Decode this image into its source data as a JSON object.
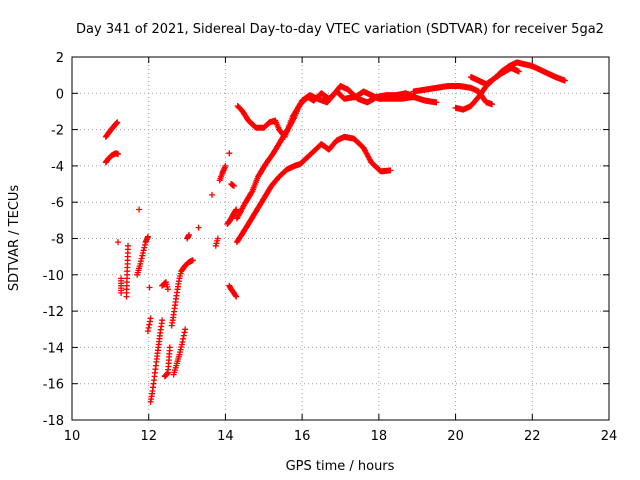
{
  "chart_data": {
    "type": "scatter",
    "title": "Day 341 of 2021, Sidereal Day-to-day VTEC variation (SDTVAR) for receiver 5ga2",
    "xlabel": "GPS time / hours",
    "ylabel": "SDTVAR / TECUs",
    "xlim": [
      10,
      24
    ],
    "ylim": [
      -18,
      2
    ],
    "xticks": [
      10,
      12,
      14,
      16,
      18,
      20,
      22,
      24
    ],
    "yticks": [
      2,
      0,
      -2,
      -4,
      -6,
      -8,
      -10,
      -12,
      -14,
      -16,
      -18
    ],
    "grid": true,
    "marker": "plus",
    "color": "#ff0000",
    "series": [
      {
        "segments": [
          [
            [
              10.88,
              -2.4
            ],
            [
              10.95,
              -2.2
            ],
            [
              11.02,
              -2.0
            ],
            [
              11.1,
              -1.8
            ],
            [
              11.18,
              -1.6
            ]
          ],
          [
            [
              10.88,
              -3.8
            ],
            [
              10.95,
              -3.6
            ],
            [
              11.05,
              -3.4
            ],
            [
              11.15,
              -3.3
            ],
            [
              11.2,
              -3.35
            ]
          ],
          [
            [
              11.2,
              -8.2
            ]
          ],
          [
            [
              11.28,
              -10.2
            ],
            [
              11.28,
              -10.6
            ],
            [
              11.28,
              -11.0
            ]
          ],
          [
            [
              11.42,
              -10.8
            ],
            [
              11.42,
              -11.2
            ],
            [
              11.46,
              -8.4
            ]
          ],
          [
            [
              11.75,
              -6.4
            ]
          ],
          [
            [
              11.7,
              -10.0
            ],
            [
              11.78,
              -9.4
            ],
            [
              11.85,
              -8.8
            ],
            [
              11.92,
              -8.2
            ],
            [
              11.98,
              -7.9
            ]
          ],
          [
            [
              12.02,
              -10.7
            ]
          ],
          [
            [
              11.98,
              -13.1
            ],
            [
              12.05,
              -12.4
            ]
          ],
          [
            [
              12.05,
              -17.0
            ],
            [
              12.1,
              -16.4
            ],
            [
              12.15,
              -15.6
            ],
            [
              12.2,
              -14.8
            ],
            [
              12.25,
              -14.0
            ],
            [
              12.3,
              -13.2
            ],
            [
              12.35,
              -12.5
            ]
          ],
          [
            [
              12.35,
              -10.6
            ],
            [
              12.45,
              -10.4
            ],
            [
              12.5,
              -10.8
            ]
          ],
          [
            [
              12.42,
              -15.6
            ],
            [
              12.5,
              -15.4
            ],
            [
              12.55,
              -14.0
            ]
          ],
          [
            [
              12.6,
              -12.8
            ],
            [
              12.65,
              -12.2
            ],
            [
              12.7,
              -11.5
            ],
            [
              12.75,
              -10.8
            ],
            [
              12.8,
              -10.2
            ],
            [
              12.85,
              -9.8
            ],
            [
              12.95,
              -9.5
            ],
            [
              13.05,
              -9.3
            ],
            [
              13.15,
              -9.2
            ]
          ],
          [
            [
              12.65,
              -15.5
            ],
            [
              12.72,
              -15.0
            ],
            [
              12.8,
              -14.4
            ],
            [
              12.88,
              -13.7
            ],
            [
              12.95,
              -13.0
            ]
          ],
          [
            [
              13.0,
              -8.0
            ],
            [
              13.05,
              -7.8
            ]
          ],
          [
            [
              13.3,
              -7.4
            ]
          ],
          [
            [
              13.65,
              -5.6
            ]
          ],
          [
            [
              13.75,
              -8.4
            ],
            [
              13.8,
              -8.0
            ]
          ],
          [
            [
              13.85,
              -4.8
            ],
            [
              13.92,
              -4.4
            ],
            [
              14.0,
              -4.0
            ]
          ],
          [
            [
              14.1,
              -3.3
            ]
          ],
          [
            [
              14.05,
              -7.2
            ],
            [
              14.12,
              -7.0
            ],
            [
              14.2,
              -6.7
            ],
            [
              14.28,
              -6.4
            ]
          ],
          [
            [
              14.1,
              -10.6
            ],
            [
              14.15,
              -10.8
            ],
            [
              14.22,
              -11.0
            ],
            [
              14.28,
              -11.2
            ]
          ],
          [
            [
              14.15,
              -5.0
            ],
            [
              14.22,
              -5.1
            ]
          ],
          [
            [
              14.32,
              -0.7
            ],
            [
              14.45,
              -1.0
            ],
            [
              14.6,
              -1.5
            ],
            [
              14.8,
              -1.9
            ],
            [
              15.0,
              -1.9
            ],
            [
              15.15,
              -1.6
            ],
            [
              15.3,
              -1.5
            ],
            [
              15.4,
              -2.0
            ],
            [
              15.55,
              -2.4
            ],
            [
              15.75,
              -1.3
            ],
            [
              15.95,
              -0.6
            ],
            [
              16.15,
              -0.2
            ],
            [
              16.3,
              -0.4
            ],
            [
              16.5,
              0.0
            ],
            [
              16.7,
              -0.3
            ],
            [
              16.9,
              0.1
            ],
            [
              17.1,
              -0.3
            ],
            [
              17.4,
              -0.2
            ],
            [
              17.6,
              0.1
            ],
            [
              17.8,
              -0.1
            ],
            [
              18.0,
              -0.3
            ],
            [
              18.3,
              -0.3
            ],
            [
              18.6,
              -0.3
            ],
            [
              18.9,
              -0.2
            ],
            [
              19.2,
              -0.4
            ],
            [
              19.5,
              -0.5
            ]
          ],
          [
            [
              14.3,
              -8.2
            ],
            [
              14.45,
              -7.7
            ],
            [
              14.6,
              -7.2
            ],
            [
              14.8,
              -6.5
            ],
            [
              15.0,
              -5.8
            ],
            [
              15.2,
              -5.1
            ],
            [
              15.4,
              -4.6
            ],
            [
              15.6,
              -4.2
            ],
            [
              15.8,
              -4.0
            ],
            [
              15.95,
              -3.9
            ],
            [
              16.1,
              -3.6
            ],
            [
              16.3,
              -3.2
            ],
            [
              16.5,
              -2.8
            ],
            [
              16.7,
              -3.1
            ],
            [
              16.9,
              -2.6
            ],
            [
              17.1,
              -2.4
            ],
            [
              17.35,
              -2.5
            ],
            [
              17.6,
              -3.0
            ],
            [
              17.8,
              -3.8
            ],
            [
              18.05,
              -4.3
            ],
            [
              18.3,
              -4.25
            ]
          ],
          [
            [
              14.3,
              -6.9
            ],
            [
              14.5,
              -6.1
            ],
            [
              14.7,
              -5.4
            ],
            [
              14.85,
              -4.6
            ],
            [
              15.05,
              -3.9
            ],
            [
              15.25,
              -3.3
            ],
            [
              15.45,
              -2.6
            ],
            [
              15.65,
              -1.9
            ],
            [
              15.8,
              -1.3
            ],
            [
              15.9,
              -0.8
            ],
            [
              16.0,
              -0.4
            ],
            [
              16.2,
              -0.1
            ],
            [
              16.4,
              -0.3
            ],
            [
              16.65,
              -0.5
            ],
            [
              16.85,
              0.0
            ],
            [
              17.0,
              0.4
            ],
            [
              17.2,
              0.2
            ],
            [
              17.45,
              -0.3
            ],
            [
              17.7,
              -0.5
            ],
            [
              17.95,
              -0.2
            ],
            [
              18.2,
              -0.1
            ],
            [
              18.45,
              -0.1
            ],
            [
              18.7,
              0.0
            ],
            [
              18.95,
              -0.2
            ]
          ],
          [
            [
              18.9,
              0.1
            ],
            [
              19.2,
              0.2
            ],
            [
              19.5,
              0.3
            ],
            [
              19.8,
              0.4
            ],
            [
              20.1,
              0.4
            ],
            [
              20.4,
              0.3
            ],
            [
              20.6,
              0.1
            ],
            [
              20.8,
              -0.5
            ],
            [
              20.95,
              -0.6
            ]
          ],
          [
            [
              20.0,
              -0.8
            ],
            [
              20.2,
              -0.9
            ],
            [
              20.4,
              -0.7
            ],
            [
              20.6,
              -0.2
            ],
            [
              20.8,
              0.4
            ],
            [
              21.0,
              0.8
            ],
            [
              21.2,
              1.1
            ],
            [
              21.45,
              1.4
            ],
            [
              21.65,
              1.2
            ]
          ],
          [
            [
              20.4,
              0.9
            ],
            [
              20.6,
              0.7
            ],
            [
              20.8,
              0.5
            ],
            [
              21.0,
              0.8
            ],
            [
              21.2,
              1.2
            ],
            [
              21.4,
              1.5
            ],
            [
              21.6,
              1.7
            ],
            [
              21.8,
              1.6
            ],
            [
              22.0,
              1.5
            ],
            [
              22.2,
              1.3
            ],
            [
              22.4,
              1.1
            ],
            [
              22.6,
              0.9
            ],
            [
              22.85,
              0.7
            ]
          ]
        ]
      }
    ]
  }
}
